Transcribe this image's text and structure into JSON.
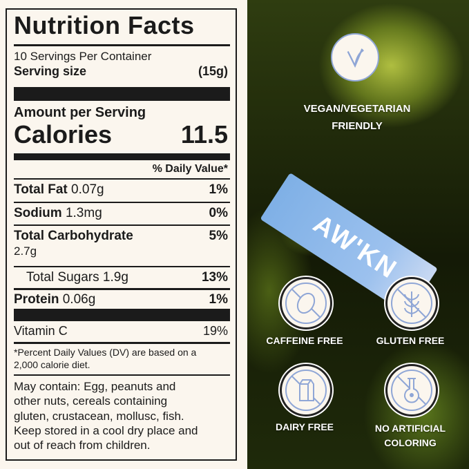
{
  "nutrition": {
    "title": "Nutrition Facts",
    "servings": "10 Servings Per Container",
    "serving_size_label": "Serving size",
    "serving_size_value": "(15g)",
    "amount_per_serving": "Amount per Serving",
    "calories_label": "Calories",
    "calories_value": "11.5",
    "daily_value_header": "% Daily Value*",
    "rows": [
      {
        "name": "Total Fat",
        "amount": "0.07g",
        "dv": "1%"
      },
      {
        "name": "Sodium",
        "amount": "1.3mg",
        "dv": "0%"
      },
      {
        "name": "Total Carbohydrate",
        "amount": "2.7g",
        "dv": "5%"
      },
      {
        "name": "Total Sugars",
        "amount": "1.9g",
        "dv": "13%"
      },
      {
        "name": "Protein",
        "amount": "0.06g",
        "dv": "1%"
      }
    ],
    "vitamin_c_label": "Vitamin C",
    "vitamin_c_dv": "19%",
    "footnote_1": "*Percent Daily Values (DV) are based on a",
    "footnote_2": "2,000 calorie diet.",
    "allergen_lines": [
      "May contain: Egg, peanuts and",
      "other nuts, cereals containing",
      "gluten, crustacean, mollusc, fish.",
      "Keep stored in a cool dry place and",
      "out of reach from children."
    ]
  },
  "product": {
    "brand": "AW'KN"
  },
  "badges": {
    "vegan_1": "VEGAN/VEGETARIAN",
    "vegan_2": "FRIENDLY",
    "caffeine": "CAFFEINE FREE",
    "gluten": "GLUTEN FREE",
    "dairy": "DAIRY FREE",
    "artificial_1": "NO ARTIFICIAL",
    "artificial_2": "COLORING"
  },
  "colors": {
    "icon_stroke": "#8fa6d6",
    "label_bg": "#fbf6ee",
    "stick": "#8fb8ea"
  }
}
